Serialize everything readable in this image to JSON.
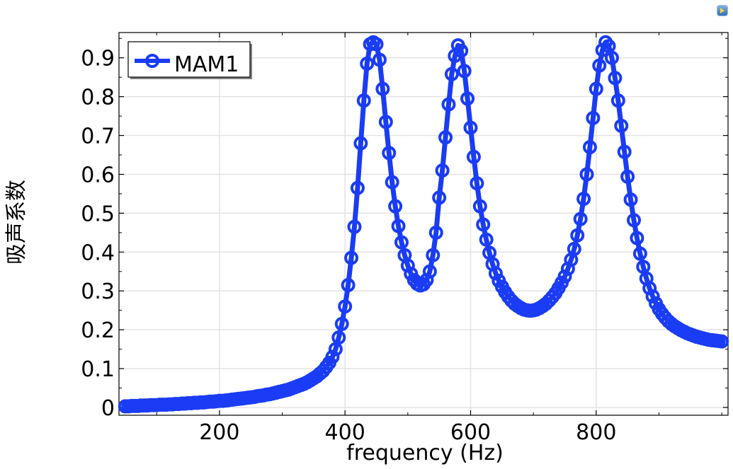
{
  "window": {
    "toolbar_icon": "play-icon"
  },
  "chart_data": {
    "type": "line",
    "title": "",
    "xlabel": "frequency (Hz)",
    "ylabel": "吸声系数",
    "xlim": [
      40,
      1010
    ],
    "ylim": [
      -0.02,
      0.965
    ],
    "xticks": [
      200,
      400,
      600,
      800
    ],
    "xtick_labels": [
      "200",
      "400",
      "600",
      "800"
    ],
    "yticks": [
      0,
      0.1,
      0.2,
      0.3,
      0.4,
      0.5,
      0.6,
      0.7,
      0.8,
      0.9
    ],
    "ytick_labels": [
      "0",
      "0.1",
      "0.2",
      "0.3",
      "0.4",
      "0.5",
      "0.6",
      "0.7",
      "0.8",
      "0.9"
    ],
    "grid": true,
    "legend_position": "top-left",
    "series": [
      {
        "name": "MAM1",
        "color": "#1a3cf5",
        "marker": "circle",
        "x": [
          50,
          55,
          60,
          65,
          70,
          75,
          80,
          85,
          90,
          95,
          100,
          105,
          110,
          115,
          120,
          125,
          130,
          135,
          140,
          145,
          150,
          155,
          160,
          165,
          170,
          175,
          180,
          185,
          190,
          195,
          200,
          205,
          210,
          215,
          220,
          225,
          230,
          235,
          240,
          245,
          250,
          255,
          260,
          265,
          270,
          275,
          280,
          285,
          290,
          295,
          300,
          305,
          310,
          315,
          320,
          325,
          330,
          335,
          340,
          345,
          350,
          355,
          360,
          365,
          370,
          375,
          380,
          385,
          390,
          395,
          400,
          405,
          410,
          415,
          420,
          425,
          430,
          435,
          440,
          445,
          450,
          455,
          460,
          465,
          470,
          475,
          480,
          485,
          490,
          495,
          500,
          505,
          510,
          515,
          520,
          525,
          530,
          535,
          540,
          545,
          550,
          555,
          560,
          565,
          570,
          575,
          580,
          585,
          590,
          595,
          600,
          605,
          610,
          615,
          620,
          625,
          630,
          635,
          640,
          645,
          650,
          655,
          660,
          665,
          670,
          675,
          680,
          685,
          690,
          695,
          700,
          705,
          710,
          715,
          720,
          725,
          730,
          735,
          740,
          745,
          750,
          755,
          760,
          765,
          770,
          775,
          780,
          785,
          790,
          795,
          800,
          805,
          810,
          815,
          820,
          825,
          830,
          835,
          840,
          845,
          850,
          855,
          860,
          865,
          870,
          875,
          880,
          885,
          890,
          895,
          900,
          905,
          910,
          915,
          920,
          925,
          930,
          935,
          940,
          945,
          950,
          955,
          960,
          965,
          970,
          975,
          980,
          985,
          990,
          995,
          1000
        ],
        "y": [
          0.003,
          0.003,
          0.004,
          0.004,
          0.004,
          0.005,
          0.005,
          0.005,
          0.006,
          0.006,
          0.006,
          0.007,
          0.007,
          0.007,
          0.008,
          0.008,
          0.009,
          0.009,
          0.01,
          0.01,
          0.011,
          0.011,
          0.012,
          0.012,
          0.013,
          0.013,
          0.014,
          0.015,
          0.015,
          0.016,
          0.017,
          0.017,
          0.018,
          0.019,
          0.02,
          0.021,
          0.022,
          0.023,
          0.024,
          0.025,
          0.026,
          0.027,
          0.029,
          0.03,
          0.031,
          0.033,
          0.034,
          0.036,
          0.038,
          0.04,
          0.042,
          0.044,
          0.046,
          0.049,
          0.052,
          0.055,
          0.058,
          0.061,
          0.065,
          0.07,
          0.075,
          0.08,
          0.087,
          0.094,
          0.104,
          0.115,
          0.13,
          0.15,
          0.18,
          0.215,
          0.26,
          0.315,
          0.385,
          0.465,
          0.565,
          0.68,
          0.79,
          0.885,
          0.935,
          0.94,
          0.935,
          0.895,
          0.82,
          0.735,
          0.655,
          0.58,
          0.518,
          0.467,
          0.425,
          0.392,
          0.365,
          0.344,
          0.328,
          0.318,
          0.314,
          0.317,
          0.328,
          0.35,
          0.392,
          0.45,
          0.54,
          0.61,
          0.695,
          0.78,
          0.858,
          0.905,
          0.932,
          0.918,
          0.866,
          0.795,
          0.72,
          0.645,
          0.577,
          0.518,
          0.471,
          0.432,
          0.398,
          0.369,
          0.345,
          0.326,
          0.311,
          0.297,
          0.285,
          0.275,
          0.267,
          0.261,
          0.256,
          0.252,
          0.25,
          0.249,
          0.25,
          0.252,
          0.256,
          0.261,
          0.267,
          0.275,
          0.284,
          0.294,
          0.307,
          0.321,
          0.337,
          0.357,
          0.38,
          0.408,
          0.443,
          0.485,
          0.537,
          0.6,
          0.67,
          0.745,
          0.82,
          0.88,
          0.92,
          0.94,
          0.93,
          0.9,
          0.848,
          0.79,
          0.725,
          0.658,
          0.594,
          0.535,
          0.482,
          0.436,
          0.396,
          0.362,
          0.332,
          0.307,
          0.286,
          0.268,
          0.253,
          0.241,
          0.231,
          0.222,
          0.215,
          0.209,
          0.204,
          0.199,
          0.195,
          0.191,
          0.188,
          0.185,
          0.182,
          0.18,
          0.178,
          0.176,
          0.174,
          0.173,
          0.172,
          0.171,
          0.17
        ]
      }
    ]
  }
}
